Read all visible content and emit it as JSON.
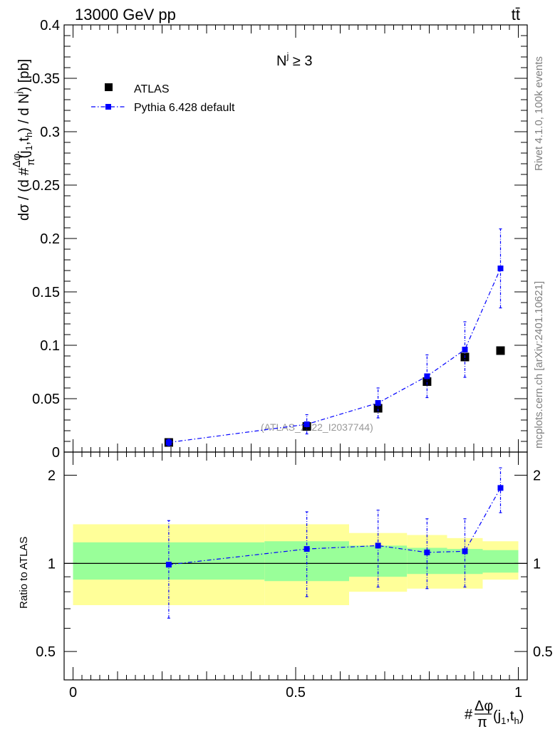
{
  "header": {
    "left": "13000 GeV pp",
    "right": "tt̄"
  },
  "side_labels": {
    "upper": "Rivet 4.1.0,  100k events",
    "lower": "mcplots.cern.ch [arXiv:2401.10621]"
  },
  "main": {
    "ylabel": "dσ / (d #Δφ/π(j1,th) / d Nj) [pb]",
    "ylabel_parts": {
      "pre": "dσ / (d #",
      "frac_num": "Δφ",
      "frac_den": "π",
      "mid": "(j",
      "sub1": "1",
      "comma": ",t",
      "sub2": "h",
      "post": ") / d N",
      "sup": "j",
      "unit": ") [pb]"
    },
    "annotation": "N ≥ 3",
    "annotation_sup": "j",
    "watermark": "(ATLAS_2022_I2037744)",
    "legend": [
      {
        "label": "ATLAS",
        "color": "#000000"
      },
      {
        "label": "Pythia 6.428 default",
        "color": "#0000ff"
      }
    ],
    "yticks": [
      "0",
      "0.05",
      "0.1",
      "0.15",
      "0.2",
      "0.25",
      "0.3",
      "0.35",
      "0.4"
    ]
  },
  "ratio": {
    "ylabel": "Ratio to ATLAS",
    "yticks": [
      "0.5",
      "1",
      "2"
    ]
  },
  "xaxis": {
    "label": "#Δφ/π(j1,th)",
    "ticks": [
      "0",
      "0.5",
      "1"
    ],
    "label_parts": {
      "pre": "#",
      "num": "Δφ",
      "den": "π",
      "mid": "(j",
      "sub1": "1",
      "comma": ",t",
      "sub2": "h",
      "post": ")"
    }
  },
  "chart_data": {
    "type": "scatter",
    "title": "13000 GeV pp  tt̄  N^j ≥ 3",
    "xlabel": "#Δφ/π(j1,th)",
    "ylabel": "dσ / (d #Δφ/π(j1,th) / d Nj) [pb]",
    "xlim": [
      -0.02,
      1.02
    ],
    "ylim": [
      0,
      0.4
    ],
    "ratio_ylim": [
      0.4,
      2.4
    ],
    "data_series": {
      "name": "ATLAS",
      "color": "#000000",
      "x": [
        0.215,
        0.525,
        0.685,
        0.795,
        0.88,
        0.96
      ],
      "y": [
        0.009,
        0.024,
        0.041,
        0.066,
        0.089,
        0.095
      ],
      "bins": [
        [
          0.0,
          0.43
        ],
        [
          0.43,
          0.62
        ],
        [
          0.62,
          0.75
        ],
        [
          0.75,
          0.84
        ],
        [
          0.84,
          0.92
        ],
        [
          0.92,
          1.0
        ]
      ],
      "band_inner": [
        [
          0.88,
          1.18
        ],
        [
          0.87,
          1.19
        ],
        [
          0.9,
          1.15
        ],
        [
          0.92,
          1.13
        ],
        [
          0.92,
          1.12
        ],
        [
          0.93,
          1.11
        ]
      ],
      "band_outer": [
        [
          0.72,
          1.36
        ],
        [
          0.72,
          1.36
        ],
        [
          0.8,
          1.27
        ],
        [
          0.82,
          1.25
        ],
        [
          0.82,
          1.22
        ],
        [
          0.88,
          1.19
        ]
      ]
    },
    "mc_series": {
      "name": "Pythia 6.428 default",
      "color": "#0000ff",
      "x": [
        0.215,
        0.525,
        0.685,
        0.795,
        0.88,
        0.96
      ],
      "y": [
        0.009,
        0.026,
        0.046,
        0.071,
        0.096,
        0.172
      ],
      "yerr": [
        0.003,
        0.009,
        0.014,
        0.02,
        0.026,
        0.037
      ],
      "ratio": [
        0.99,
        1.12,
        1.15,
        1.09,
        1.1,
        1.81
      ],
      "ratio_err": [
        [
          0.65,
          1.4
        ],
        [
          0.77,
          1.5
        ],
        [
          0.83,
          1.52
        ],
        [
          0.82,
          1.42
        ],
        [
          0.83,
          1.42
        ],
        [
          1.49,
          2.12
        ]
      ]
    }
  }
}
